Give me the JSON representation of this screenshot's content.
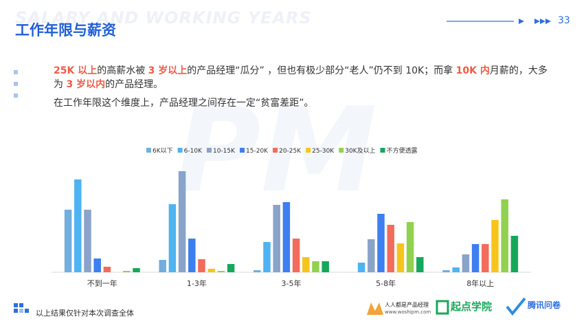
{
  "header": {
    "watermark": "SALARY AND WORKING YEARS",
    "title": "工作年限与薪资",
    "page_number": "33",
    "background_mark": "PM"
  },
  "body": {
    "paragraph1": [
      {
        "text": "25K 以上",
        "em": true
      },
      {
        "text": "的高薪水被 ",
        "em": false
      },
      {
        "text": "3 岁以上",
        "em": true
      },
      {
        "text": "的产品经理“瓜分” ，但也有极少部分“老人”仍不到 10K；而拿 ",
        "em": false
      },
      {
        "text": "10K 内",
        "em": true
      },
      {
        "text": "月薪的，大多为 ",
        "em": false
      },
      {
        "text": "3 岁以内",
        "em": true
      },
      {
        "text": "的产品经理。",
        "em": false
      }
    ],
    "paragraph2": "在工作年限这个维度上，产品经理之间存在一定“贫富差距”。"
  },
  "chart_data": {
    "type": "bar",
    "categories": [
      "不到一年",
      "1-3年",
      "3-5年",
      "5-8年",
      "8年以上"
    ],
    "ylim": [
      0,
      150
    ],
    "series": [
      {
        "name": "6K以下",
        "color": "#72aede",
        "values": [
          91,
          18,
          3,
          0,
          3
        ]
      },
      {
        "name": "6-10K",
        "color": "#4fb3f2",
        "values": [
          135,
          99,
          44,
          14,
          7
        ]
      },
      {
        "name": "10-15K",
        "color": "#8aa3c8",
        "values": [
          91,
          147,
          98,
          48,
          26
        ]
      },
      {
        "name": "15-20K",
        "color": "#3d7ff0",
        "values": [
          20,
          49,
          102,
          85,
          41
        ]
      },
      {
        "name": "20-25K",
        "color": "#f36b5a",
        "values": [
          8,
          19,
          49,
          69,
          41
        ]
      },
      {
        "name": "25-30K",
        "color": "#f6c51c",
        "values": [
          0,
          5,
          22,
          42,
          76
        ]
      },
      {
        "name": "30K及以上",
        "color": "#92d050",
        "values": [
          2,
          2,
          16,
          73,
          106
        ]
      },
      {
        "name": "不方便透露",
        "color": "#16a85a",
        "values": [
          6,
          12,
          16,
          22,
          53
        ]
      }
    ]
  },
  "footer": {
    "note": "以上结果仅针对本次调查全体",
    "logos": [
      "人人都是产品经理",
      "www.woshipm.com",
      "起点学院",
      "腾讯问卷"
    ]
  }
}
